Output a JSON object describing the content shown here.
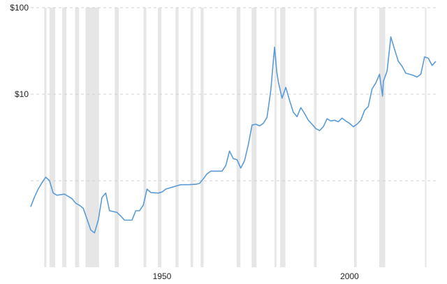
{
  "chart_data": {
    "type": "line",
    "title": "",
    "xlabel": "",
    "ylabel": "",
    "y_scale": "log",
    "ylim": [
      0.1,
      100
    ],
    "xlim": [
      1915,
      2023
    ],
    "y_ticks": [
      {
        "value": 100,
        "label": "$100"
      },
      {
        "value": 10,
        "label": "$10"
      },
      {
        "value": 1,
        "label": ""
      }
    ],
    "x_ticks": [
      {
        "value": 1950,
        "label": "1950"
      },
      {
        "value": 2000,
        "label": "2000"
      }
    ],
    "grid": {
      "horizontal": true,
      "style": "dashed"
    },
    "recession_bands": [
      [
        1918.6,
        1919.2
      ],
      [
        1920.0,
        1921.5
      ],
      [
        1923.4,
        1924.5
      ],
      [
        1926.8,
        1927.9
      ],
      [
        1929.6,
        1933.2
      ],
      [
        1937.4,
        1938.5
      ],
      [
        1945.1,
        1945.8
      ],
      [
        1948.9,
        1949.8
      ],
      [
        1953.6,
        1954.4
      ],
      [
        1957.6,
        1958.3
      ],
      [
        1960.3,
        1961.1
      ],
      [
        1969.9,
        1970.9
      ],
      [
        1973.9,
        1975.2
      ],
      [
        1980.0,
        1980.5
      ],
      [
        1981.5,
        1982.9
      ],
      [
        1990.5,
        1991.2
      ],
      [
        2001.2,
        2001.9
      ],
      [
        2007.9,
        2009.5
      ],
      [
        2020.1,
        2020.4
      ]
    ],
    "series": [
      {
        "color": "#5b9bd5",
        "points": [
          [
            1915,
            0.5
          ],
          [
            1916,
            0.65
          ],
          [
            1917,
            0.8
          ],
          [
            1918,
            0.95
          ],
          [
            1919,
            1.1
          ],
          [
            1920,
            1.0
          ],
          [
            1921,
            0.72
          ],
          [
            1922,
            0.68
          ],
          [
            1924,
            0.7
          ],
          [
            1926,
            0.62
          ],
          [
            1927,
            0.55
          ],
          [
            1928,
            0.52
          ],
          [
            1929,
            0.48
          ],
          [
            1930,
            0.36
          ],
          [
            1931,
            0.27
          ],
          [
            1932,
            0.25
          ],
          [
            1933,
            0.35
          ],
          [
            1934,
            0.64
          ],
          [
            1935,
            0.72
          ],
          [
            1936,
            0.45
          ],
          [
            1938,
            0.43
          ],
          [
            1939,
            0.39
          ],
          [
            1940,
            0.35
          ],
          [
            1942,
            0.35
          ],
          [
            1943,
            0.45
          ],
          [
            1944,
            0.45
          ],
          [
            1945,
            0.52
          ],
          [
            1946,
            0.8
          ],
          [
            1947,
            0.73
          ],
          [
            1949,
            0.72
          ],
          [
            1950,
            0.74
          ],
          [
            1951,
            0.8
          ],
          [
            1953,
            0.85
          ],
          [
            1955,
            0.9
          ],
          [
            1957,
            0.9
          ],
          [
            1959,
            0.91
          ],
          [
            1960,
            0.93
          ],
          [
            1961,
            1.05
          ],
          [
            1962,
            1.2
          ],
          [
            1963,
            1.29
          ],
          [
            1966,
            1.29
          ],
          [
            1967,
            1.5
          ],
          [
            1968,
            2.2
          ],
          [
            1969,
            1.8
          ],
          [
            1970,
            1.75
          ],
          [
            1971,
            1.4
          ],
          [
            1972,
            1.7
          ],
          [
            1973,
            2.6
          ],
          [
            1974,
            4.4
          ],
          [
            1975,
            4.5
          ],
          [
            1976,
            4.3
          ],
          [
            1977,
            4.6
          ],
          [
            1978,
            5.4
          ],
          [
            1979,
            11.0
          ],
          [
            1980,
            35.0
          ],
          [
            1980.6,
            18.0
          ],
          [
            1981,
            14.0
          ],
          [
            1982,
            9.0
          ],
          [
            1983,
            12.0
          ],
          [
            1984,
            8.5
          ],
          [
            1985,
            6.2
          ],
          [
            1986,
            5.5
          ],
          [
            1987,
            7.0
          ],
          [
            1988,
            6.0
          ],
          [
            1989,
            5.0
          ],
          [
            1990,
            4.5
          ],
          [
            1991,
            4.0
          ],
          [
            1992,
            3.8
          ],
          [
            1993,
            4.2
          ],
          [
            1994,
            5.2
          ],
          [
            1995,
            4.9
          ],
          [
            1996,
            5.0
          ],
          [
            1997,
            4.8
          ],
          [
            1998,
            5.3
          ],
          [
            1999,
            4.9
          ],
          [
            2000,
            4.6
          ],
          [
            2001,
            4.2
          ],
          [
            2002,
            4.5
          ],
          [
            2003,
            5.0
          ],
          [
            2004,
            6.5
          ],
          [
            2005,
            7.2
          ],
          [
            2006,
            11.5
          ],
          [
            2007,
            13.5
          ],
          [
            2008,
            17.0
          ],
          [
            2008.8,
            9.5
          ],
          [
            2009,
            14.0
          ],
          [
            2010,
            18.5
          ],
          [
            2011,
            46.0
          ],
          [
            2012,
            33.0
          ],
          [
            2013,
            24.0
          ],
          [
            2014,
            21.0
          ],
          [
            2015,
            17.5
          ],
          [
            2016,
            17.0
          ],
          [
            2017,
            16.5
          ],
          [
            2018,
            15.8
          ],
          [
            2019,
            17.0
          ],
          [
            2020,
            27.0
          ],
          [
            2021,
            26.0
          ],
          [
            2022,
            21.5
          ],
          [
            2023,
            24.0
          ]
        ]
      }
    ]
  }
}
